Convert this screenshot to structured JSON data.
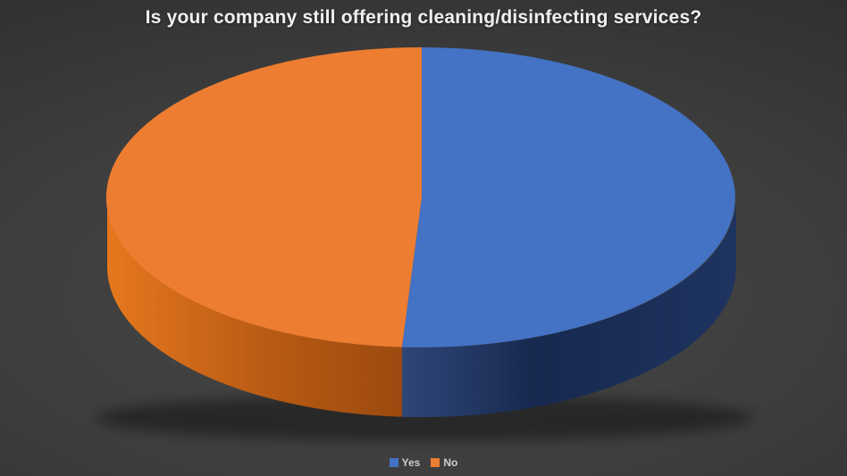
{
  "title": "Is your company still offering cleaning/disinfecting services?",
  "legend": [
    {
      "label": "Yes",
      "color": "#4472C4"
    },
    {
      "label": "No",
      "color": "#ED7D31"
    }
  ],
  "chart_data": {
    "type": "pie",
    "style": "3d-pie",
    "title": "Is your company still offering cleaning/disinfecting services?",
    "labels": [
      "Yes",
      "No"
    ],
    "values": [
      51,
      49
    ],
    "unit": "percent (estimated from slice angles; no data labels shown)",
    "colors": [
      "#4472C4",
      "#ED7D31"
    ],
    "side_gradients": [
      [
        [
          "0%",
          "#2E4677"
        ],
        [
          "40%",
          "#17294F"
        ],
        [
          "100%",
          "#1E3360"
        ]
      ],
      [
        [
          "0%",
          "#E6781E"
        ],
        [
          "55%",
          "#B85A13"
        ],
        [
          "100%",
          "#9C4A10"
        ]
      ]
    ],
    "start_angle_deg": -90,
    "direction": "clockwise",
    "legend_position": "bottom",
    "data_labels": false
  },
  "colors": {
    "background_center": "#474747",
    "background_edge": "#2a2a2a",
    "title_text": "#f0f0f0",
    "legend_text": "#cfcfcf",
    "shadow": "#000000"
  }
}
